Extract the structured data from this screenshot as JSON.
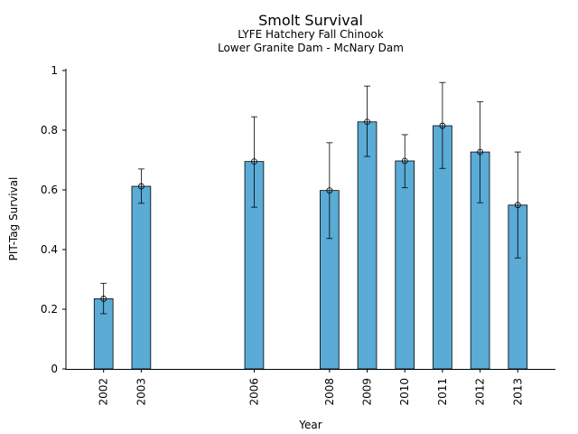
{
  "chart_data": {
    "type": "bar",
    "title": "Smolt Survival",
    "subtitles": [
      "LYFE Hatchery Fall Chinook",
      "Lower Granite Dam - McNary Dam"
    ],
    "xlabel": "Year",
    "ylabel": "PIT-Tag Survival",
    "categories": [
      "2002",
      "2003",
      "2006",
      "2008",
      "2009",
      "2010",
      "2011",
      "2012",
      "2013"
    ],
    "x": [
      2002,
      2003,
      2006,
      2008,
      2009,
      2010,
      2011,
      2012,
      2013
    ],
    "values": [
      0.235,
      0.612,
      0.695,
      0.598,
      0.828,
      0.697,
      0.815,
      0.727,
      0.549
    ],
    "lower": [
      0.185,
      0.555,
      0.542,
      0.437,
      0.712,
      0.607,
      0.672,
      0.557,
      0.372
    ],
    "upper": [
      0.287,
      0.67,
      0.845,
      0.758,
      0.948,
      0.785,
      0.96,
      0.895,
      0.727
    ],
    "xlim": [
      2001,
      2014
    ],
    "ylim": [
      0,
      1
    ],
    "yticks": [
      "0",
      "0.2",
      "0.4",
      "0.6",
      "0.8",
      "1"
    ],
    "bar_color": "#5aabd6",
    "grid": false,
    "legend": "none"
  }
}
